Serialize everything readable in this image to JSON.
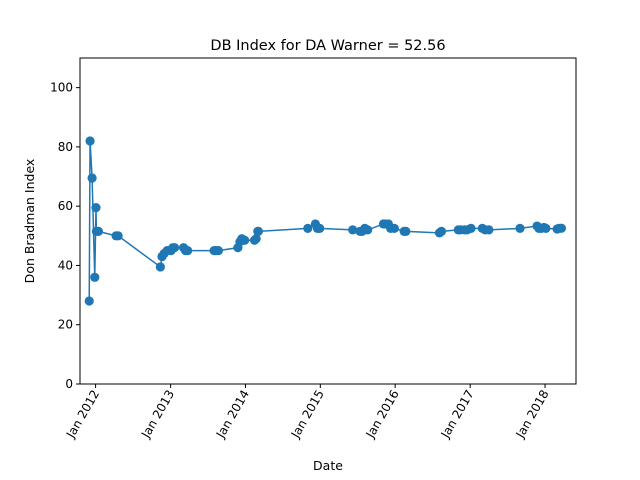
{
  "chart_data": {
    "type": "line",
    "title": "DB Index for DA Warner = 52.56",
    "xlabel": "Date",
    "ylabel": "Don Bradman Index",
    "ylim": [
      0,
      110
    ],
    "xlim": [
      "2011-10-17",
      "2018-06-01"
    ],
    "yticks": [
      0,
      20,
      40,
      60,
      80,
      100
    ],
    "xticks": [
      {
        "date": "2012-01-01",
        "label": "Jan 2012"
      },
      {
        "date": "2013-01-01",
        "label": "Jan 2013"
      },
      {
        "date": "2014-01-01",
        "label": "Jan 2014"
      },
      {
        "date": "2015-01-01",
        "label": "Jan 2015"
      },
      {
        "date": "2016-01-01",
        "label": "Jan 2016"
      },
      {
        "date": "2017-01-01",
        "label": "Jan 2017"
      },
      {
        "date": "2018-01-01",
        "label": "Jan 2018"
      }
    ],
    "grid": false,
    "marker": "circle",
    "color": "#1f77b4",
    "series": [
      {
        "x": [
          "2011-12-01",
          "2011-12-05",
          "2011-12-15",
          "2011-12-28",
          "2012-01-03",
          "2012-01-05",
          "2012-01-15",
          "2012-04-10",
          "2012-04-20",
          "2012-11-12",
          "2012-11-20",
          "2012-11-30",
          "2012-12-15",
          "2013-01-03",
          "2013-01-12",
          "2013-01-20",
          "2013-03-05",
          "2013-03-15",
          "2013-03-25",
          "2013-08-01",
          "2013-08-10",
          "2013-08-22",
          "2013-11-25",
          "2013-12-05",
          "2013-12-14",
          "2013-12-28",
          "2014-02-14",
          "2014-02-22",
          "2014-03-02",
          "2014-03-05",
          "2014-11-01",
          "2014-12-08",
          "2014-12-18",
          "2014-12-29",
          "2015-06-08",
          "2015-07-14",
          "2015-07-24",
          "2015-08-06",
          "2015-08-20",
          "2015-11-05",
          "2015-11-14",
          "2015-11-29",
          "2015-12-10",
          "2015-12-28",
          "2016-02-14",
          "2016-02-22",
          "2016-08-04",
          "2016-08-14",
          "2016-11-04",
          "2016-11-14",
          "2016-12-04",
          "2016-12-17",
          "2017-01-05",
          "2017-03-01",
          "2017-03-15",
          "2017-04-02",
          "2017-09-01",
          "2017-11-23",
          "2017-12-02",
          "2017-12-14",
          "2017-12-27",
          "2018-01-05",
          "2018-03-01",
          "2018-03-10",
          "2018-03-22"
        ],
        "y": [
          28,
          82,
          69.5,
          36,
          59.5,
          51.5,
          51.5,
          50,
          50,
          39.5,
          43,
          44,
          45,
          45,
          46,
          46,
          46,
          45,
          45,
          45,
          45,
          45,
          46,
          48,
          49,
          48.5,
          48.5,
          49,
          51.5,
          51.5,
          52.5,
          54,
          52.5,
          52.5,
          52,
          51.5,
          51.5,
          52.5,
          52,
          54,
          54,
          54,
          52.5,
          52.5,
          51.5,
          51.5,
          51,
          51.5,
          52,
          52,
          52,
          52,
          52.5,
          52.5,
          52,
          52,
          52.5,
          53.3,
          52.5,
          52.5,
          52.8,
          52.5,
          52.3,
          52.5,
          52.56
        ]
      }
    ]
  }
}
